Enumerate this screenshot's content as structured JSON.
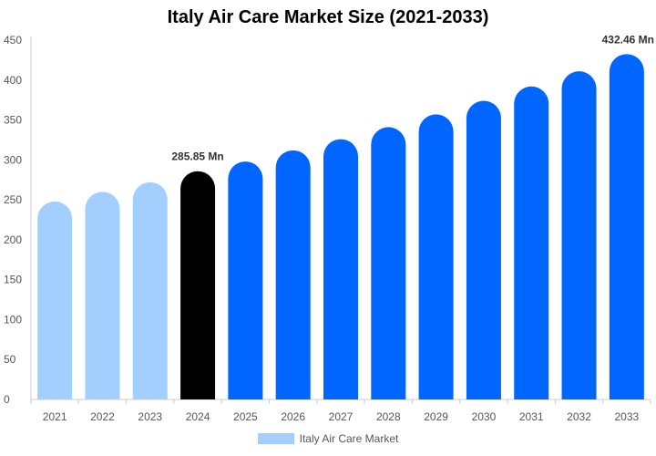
{
  "chart_data": {
    "type": "bar",
    "title": "Italy Air Care Market Size (2021-2033)",
    "categories": [
      "2021",
      "2022",
      "2023",
      "2024",
      "2025",
      "2026",
      "2027",
      "2028",
      "2029",
      "2030",
      "2031",
      "2032",
      "2033"
    ],
    "series": [
      {
        "name": "Italy Air Care Market",
        "values": [
          248,
          260,
          272,
          285.85,
          298,
          312,
          326,
          341,
          357,
          374,
          392,
          411,
          432.46
        ]
      }
    ],
    "data_labels": [
      {
        "category": "2024",
        "text": "285.85 Mn"
      },
      {
        "category": "2033",
        "text": "432.46 Mn"
      }
    ],
    "ylim": [
      0,
      450
    ],
    "yticks": [
      0,
      50,
      100,
      150,
      200,
      250,
      300,
      350,
      400,
      450
    ],
    "xlabel": "",
    "ylabel": "",
    "grid": false,
    "legend_position": "bottom",
    "colors": {
      "historical": "#a3cfff",
      "current": "#000000",
      "forecast": "#0066ff",
      "legend_swatch": "#a3cfff",
      "axis": "#cccccc"
    },
    "color_groups": {
      "historical": [
        "2021",
        "2022",
        "2023"
      ],
      "current": [
        "2024"
      ],
      "forecast": [
        "2025",
        "2026",
        "2027",
        "2028",
        "2029",
        "2030",
        "2031",
        "2032",
        "2033"
      ]
    }
  }
}
